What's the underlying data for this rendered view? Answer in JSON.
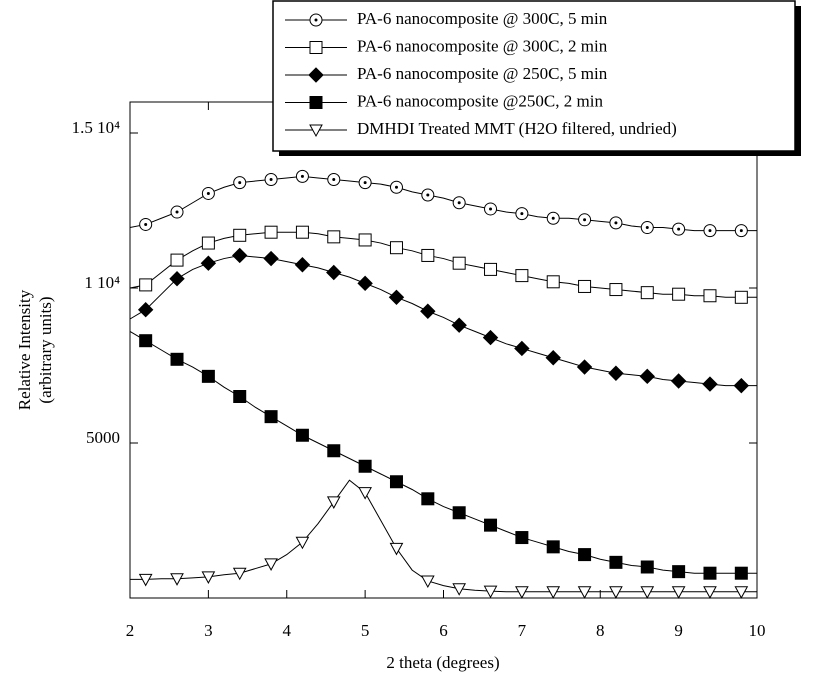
{
  "chart_data": {
    "type": "line",
    "xlabel": "2 theta (degrees)",
    "ylabel": [
      "Relative Intensity",
      "(arbitrary units)"
    ],
    "xlim": [
      2,
      10
    ],
    "ylim": [
      0,
      16000
    ],
    "xticks": [
      2,
      3,
      4,
      5,
      6,
      7,
      8,
      9,
      10
    ],
    "yticks": [
      5000,
      {
        "value": 10000,
        "label": "1 10⁴"
      },
      {
        "value": 15000,
        "label": "1.5 10⁴"
      }
    ],
    "x": [
      2.0,
      2.2,
      2.4,
      2.6,
      2.8,
      3.0,
      3.2,
      3.4,
      3.6,
      3.8,
      4.0,
      4.2,
      4.4,
      4.6,
      4.8,
      5.0,
      5.2,
      5.4,
      5.6,
      5.8,
      6.0,
      6.2,
      6.4,
      6.6,
      6.8,
      7.0,
      7.2,
      7.4,
      7.6,
      7.8,
      8.0,
      8.2,
      8.4,
      8.6,
      8.8,
      9.0,
      9.2,
      9.4,
      9.6,
      9.8,
      10.0
    ],
    "series": [
      {
        "name": "PA-6 nanocomposite @ 300C, 5 min",
        "color": "#000000",
        "marker": "circle-open",
        "values": [
          11950,
          12050,
          12250,
          12450,
          12750,
          13050,
          13250,
          13400,
          13450,
          13500,
          13550,
          13600,
          13550,
          13500,
          13450,
          13400,
          13350,
          13250,
          13100,
          13000,
          12900,
          12750,
          12650,
          12550,
          12450,
          12400,
          12300,
          12250,
          12250,
          12200,
          12150,
          12100,
          12000,
          11950,
          11950,
          11900,
          11850,
          11850,
          11850,
          11850,
          11850
        ]
      },
      {
        "name": "PA-6 nanocomposite @ 300C, 2 min",
        "color": "#000000",
        "marker": "square-open",
        "values": [
          10000,
          10100,
          10500,
          10900,
          11200,
          11450,
          11600,
          11700,
          11750,
          11800,
          11800,
          11800,
          11750,
          11650,
          11600,
          11550,
          11450,
          11300,
          11200,
          11050,
          10950,
          10800,
          10700,
          10600,
          10500,
          10400,
          10300,
          10200,
          10150,
          10050,
          10000,
          9950,
          9900,
          9850,
          9800,
          9800,
          9750,
          9750,
          9700,
          9700,
          9700
        ]
      },
      {
        "name": "PA-6 nanocomposite @ 250C, 5 min",
        "color": "#000000",
        "marker": "diamond",
        "values": [
          9000,
          9300,
          9800,
          10300,
          10600,
          10800,
          10950,
          11050,
          11000,
          10950,
          10850,
          10750,
          10650,
          10500,
          10350,
          10150,
          9950,
          9700,
          9500,
          9250,
          9050,
          8800,
          8600,
          8400,
          8200,
          8050,
          7900,
          7750,
          7600,
          7450,
          7350,
          7250,
          7200,
          7150,
          7050,
          7000,
          6950,
          6900,
          6850,
          6850,
          6850
        ]
      },
      {
        "name": "PA-6 nanocomposite  @250C, 2 min",
        "color": "#000000",
        "marker": "square",
        "values": [
          8600,
          8300,
          8000,
          7700,
          7450,
          7150,
          6800,
          6500,
          6150,
          5850,
          5550,
          5250,
          5000,
          4750,
          4500,
          4250,
          4000,
          3750,
          3500,
          3200,
          2950,
          2750,
          2550,
          2350,
          2150,
          1950,
          1800,
          1650,
          1500,
          1400,
          1250,
          1150,
          1050,
          1000,
          900,
          850,
          800,
          800,
          800,
          800,
          800
        ]
      },
      {
        "name": "DMHDI Treated MMT (H2O filtered, undried)",
        "color": "#000000",
        "marker": "triangle-down-open",
        "values": [
          600,
          600,
          620,
          620,
          650,
          680,
          750,
          800,
          950,
          1100,
          1400,
          1800,
          2400,
          3100,
          3800,
          3400,
          2500,
          1600,
          900,
          550,
          400,
          300,
          250,
          220,
          200,
          200,
          200,
          200,
          200,
          200,
          200,
          200,
          200,
          200,
          200,
          200,
          200,
          200,
          200,
          200,
          200
        ]
      }
    ]
  }
}
